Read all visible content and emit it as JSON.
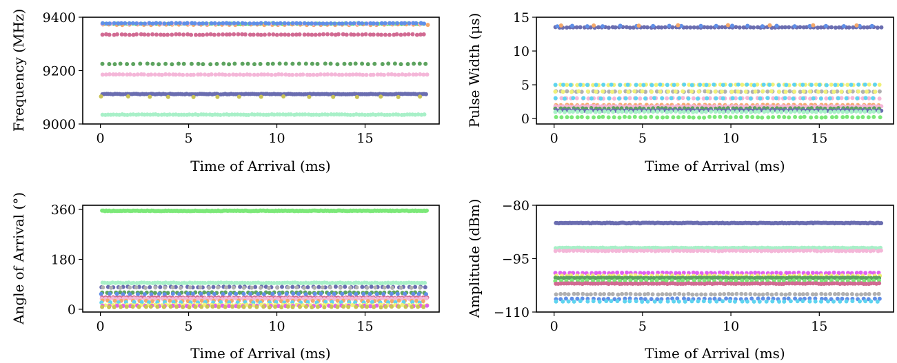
{
  "chart_data": [
    {
      "type": "scatter",
      "xlabel": "Time of Arrival (ms)",
      "ylabel": "Frequency (MHz)",
      "xlim": [
        -1.0,
        19.2
      ],
      "ylim": [
        9000,
        9400
      ],
      "xticks": [
        0,
        5,
        10,
        15
      ],
      "yticks": [
        9000,
        9200,
        9400
      ],
      "xtick_labels": [
        "0",
        "5",
        "10",
        "15"
      ],
      "ytick_labels": [
        "9000",
        "9200",
        "9400"
      ],
      "x_range": [
        0.1,
        18.5
      ],
      "series": [
        {
          "y": 9375,
          "color": "#7ce879",
          "spacing": 0.16,
          "size": 6
        },
        {
          "y": 9372,
          "color": "#f4a86a",
          "spacing": 0.4,
          "size": 6
        },
        {
          "y": 9376,
          "color": "#f4b6d8",
          "spacing": 0.5,
          "size": 6
        },
        {
          "y": 9377,
          "color": "#5f8fe8",
          "spacing": 0.22,
          "size": 6
        },
        {
          "y": 9335,
          "color": "#d16a92",
          "spacing": 0.22,
          "size": 6
        },
        {
          "y": 9225,
          "color": "#5da35f",
          "spacing": 0.36,
          "size": 6
        },
        {
          "y": 9185,
          "color": "#f4b6d8",
          "spacing": 0.2,
          "size": 6
        },
        {
          "y": 9112,
          "color": "#6a6db0",
          "spacing": 0.12,
          "size": 6
        },
        {
          "y": 9102,
          "color": "#c9c254",
          "spacing": 1.3,
          "size": 6
        },
        {
          "y": 9035,
          "color": "#a8f0c8",
          "spacing": 0.16,
          "size": 6
        }
      ]
    },
    {
      "type": "scatter",
      "xlabel": "Time of Arrival (ms)",
      "ylabel": "Pulse Width (μs)",
      "xlim": [
        -1.0,
        19.2
      ],
      "ylim": [
        -0.8,
        15
      ],
      "xticks": [
        0,
        5,
        10,
        15
      ],
      "yticks": [
        0,
        5,
        10,
        15
      ],
      "xtick_labels": [
        "0",
        "5",
        "10",
        "15"
      ],
      "ytick_labels": [
        "0",
        "5",
        "10",
        "15"
      ],
      "x_range": [
        0.1,
        18.5
      ],
      "series": [
        {
          "y": 13.5,
          "color": "#6a6db0",
          "spacing": 0.2,
          "size": 6
        },
        {
          "y": 13.7,
          "color": "#5f8fe8",
          "spacing": 0.9,
          "size": 6
        },
        {
          "y": 13.8,
          "color": "#f4a86a",
          "spacing": 2.4,
          "size": 6
        },
        {
          "y": 5.0,
          "color": "#f0f078",
          "spacing": 0.3,
          "size": 6
        },
        {
          "y": 5.0,
          "color": "#5fd4f0",
          "spacing": 0.45,
          "size": 6
        },
        {
          "y": 4.0,
          "color": "#b0b0b0",
          "spacing": 0.3,
          "size": 6
        },
        {
          "y": 4.0,
          "color": "#f0f078",
          "spacing": 0.45,
          "size": 6
        },
        {
          "y": 3.0,
          "color": "#f4b6d8",
          "spacing": 0.3,
          "size": 6
        },
        {
          "y": 3.0,
          "color": "#5fd4f0",
          "spacing": 0.5,
          "size": 6
        },
        {
          "y": 2.0,
          "color": "#f4a86a",
          "spacing": 0.3,
          "size": 6
        },
        {
          "y": 1.8,
          "color": "#f4b6d8",
          "spacing": 0.2,
          "size": 6
        },
        {
          "y": 1.5,
          "color": "#5da35f",
          "spacing": 0.25,
          "size": 6
        },
        {
          "y": 1.2,
          "color": "#6a6db0",
          "spacing": 0.2,
          "size": 6
        },
        {
          "y": 1.0,
          "color": "#a8f0c8",
          "spacing": 0.25,
          "size": 6
        },
        {
          "y": 0.2,
          "color": "#7ce879",
          "spacing": 0.3,
          "size": 6
        }
      ]
    },
    {
      "type": "scatter",
      "xlabel": "Time of Arrival (ms)",
      "ylabel": "Angle of Arrival (°)",
      "xlim": [
        -1.0,
        19.2
      ],
      "ylim": [
        -10,
        375
      ],
      "xticks": [
        0,
        5,
        10,
        15
      ],
      "yticks": [
        0,
        180,
        360
      ],
      "xtick_labels": [
        "0",
        "5",
        "10",
        "15"
      ],
      "ytick_labels": [
        "0",
        "180",
        "360"
      ],
      "x_range": [
        0.1,
        18.5
      ],
      "series": [
        {
          "y": 355,
          "color": "#7ce879",
          "spacing": 0.08,
          "size": 6
        },
        {
          "y": 95,
          "color": "#a8f0c8",
          "spacing": 0.15,
          "size": 6
        },
        {
          "y": 80,
          "color": "#6a6db0",
          "spacing": 0.3,
          "size": 6
        },
        {
          "y": 78,
          "color": "#b0b0b0",
          "spacing": 0.5,
          "size": 6
        },
        {
          "y": 60,
          "color": "#5da35f",
          "spacing": 0.25,
          "size": 6
        },
        {
          "y": 55,
          "color": "#5f8fe8",
          "spacing": 0.4,
          "size": 6
        },
        {
          "y": 42,
          "color": "#d16a92",
          "spacing": 0.2,
          "size": 6
        },
        {
          "y": 38,
          "color": "#f4b6d8",
          "spacing": 0.2,
          "size": 6
        },
        {
          "y": 30,
          "color": "#f4a86a",
          "spacing": 0.35,
          "size": 6
        },
        {
          "y": 25,
          "color": "#5fd4f0",
          "spacing": 0.45,
          "size": 6
        },
        {
          "y": 15,
          "color": "#f0f078",
          "spacing": 0.2,
          "size": 6
        },
        {
          "y": 12,
          "color": "#e060f0",
          "spacing": 0.4,
          "size": 6
        },
        {
          "y": 8,
          "color": "#c9c254",
          "spacing": 0.35,
          "size": 6
        }
      ]
    },
    {
      "type": "scatter",
      "xlabel": "Time of Arrival (ms)",
      "ylabel": "Amplitude (dBm)",
      "xlim": [
        -1.0,
        19.2
      ],
      "ylim": [
        -110,
        -80
      ],
      "xticks": [
        0,
        5,
        10,
        15
      ],
      "yticks": [
        -110,
        -95,
        -80
      ],
      "xtick_labels": [
        "0",
        "5",
        "10",
        "15"
      ],
      "ytick_labels": [
        "−110",
        "−95",
        "−80"
      ],
      "x_range": [
        0.1,
        18.5
      ],
      "series": [
        {
          "y": -85,
          "color": "#6a6db0",
          "spacing": 0.08,
          "size": 6
        },
        {
          "y": -92,
          "color": "#a8f0c8",
          "spacing": 0.12,
          "size": 6
        },
        {
          "y": -92.8,
          "color": "#f4b6d8",
          "spacing": 0.2,
          "size": 6
        },
        {
          "y": -99,
          "color": "#e060f0",
          "spacing": 0.25,
          "size": 6
        },
        {
          "y": -99.8,
          "color": "#f0f078",
          "spacing": 0.3,
          "size": 6
        },
        {
          "y": -100.4,
          "color": "#5da35f",
          "spacing": 0.15,
          "size": 6
        },
        {
          "y": -101.2,
          "color": "#7ce879",
          "spacing": 0.3,
          "size": 6
        },
        {
          "y": -102,
          "color": "#d16a92",
          "spacing": 0.15,
          "size": 6
        },
        {
          "y": -105,
          "color": "#b0b0b0",
          "spacing": 0.25,
          "size": 6
        },
        {
          "y": -106.3,
          "color": "#5f8fe8",
          "spacing": 0.3,
          "size": 6
        },
        {
          "y": -107,
          "color": "#5fd4f0",
          "spacing": 0.35,
          "size": 6
        }
      ]
    }
  ]
}
